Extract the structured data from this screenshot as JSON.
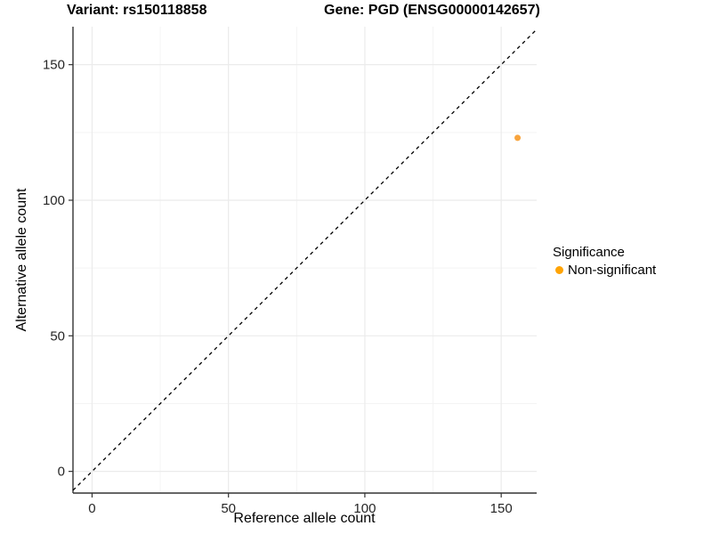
{
  "header": {
    "variant_title": "Variant: rs150118858",
    "gene_title": "Gene: PGD (ENSG00000142657)"
  },
  "chart_data": {
    "type": "scatter",
    "xlabel": "Reference allele count",
    "ylabel": "Alternative allele count",
    "xlim": [
      -7,
      163
    ],
    "ylim": [
      -8,
      164
    ],
    "x_ticks": [
      0,
      50,
      100,
      150
    ],
    "y_ticks": [
      0,
      50,
      100,
      150
    ],
    "minor_gridlines": [
      25,
      75,
      125
    ],
    "grid": "on",
    "points": [
      {
        "x": 156,
        "y": 123,
        "series": "Non-significant",
        "color": "#F8A43D",
        "radius": 3.5
      }
    ],
    "reference_line": {
      "equation": "y = x",
      "style": "dashed",
      "color": "#000000"
    },
    "legend": {
      "title": "Significance",
      "position": "right",
      "items": [
        {
          "label": "Non-significant",
          "color": "#FFA405"
        }
      ]
    },
    "colors": {
      "major_grid": "#EBEBEB",
      "minor_grid": "#F4F4F4",
      "axis_line": "#333333",
      "tick_label": "#262626"
    }
  }
}
